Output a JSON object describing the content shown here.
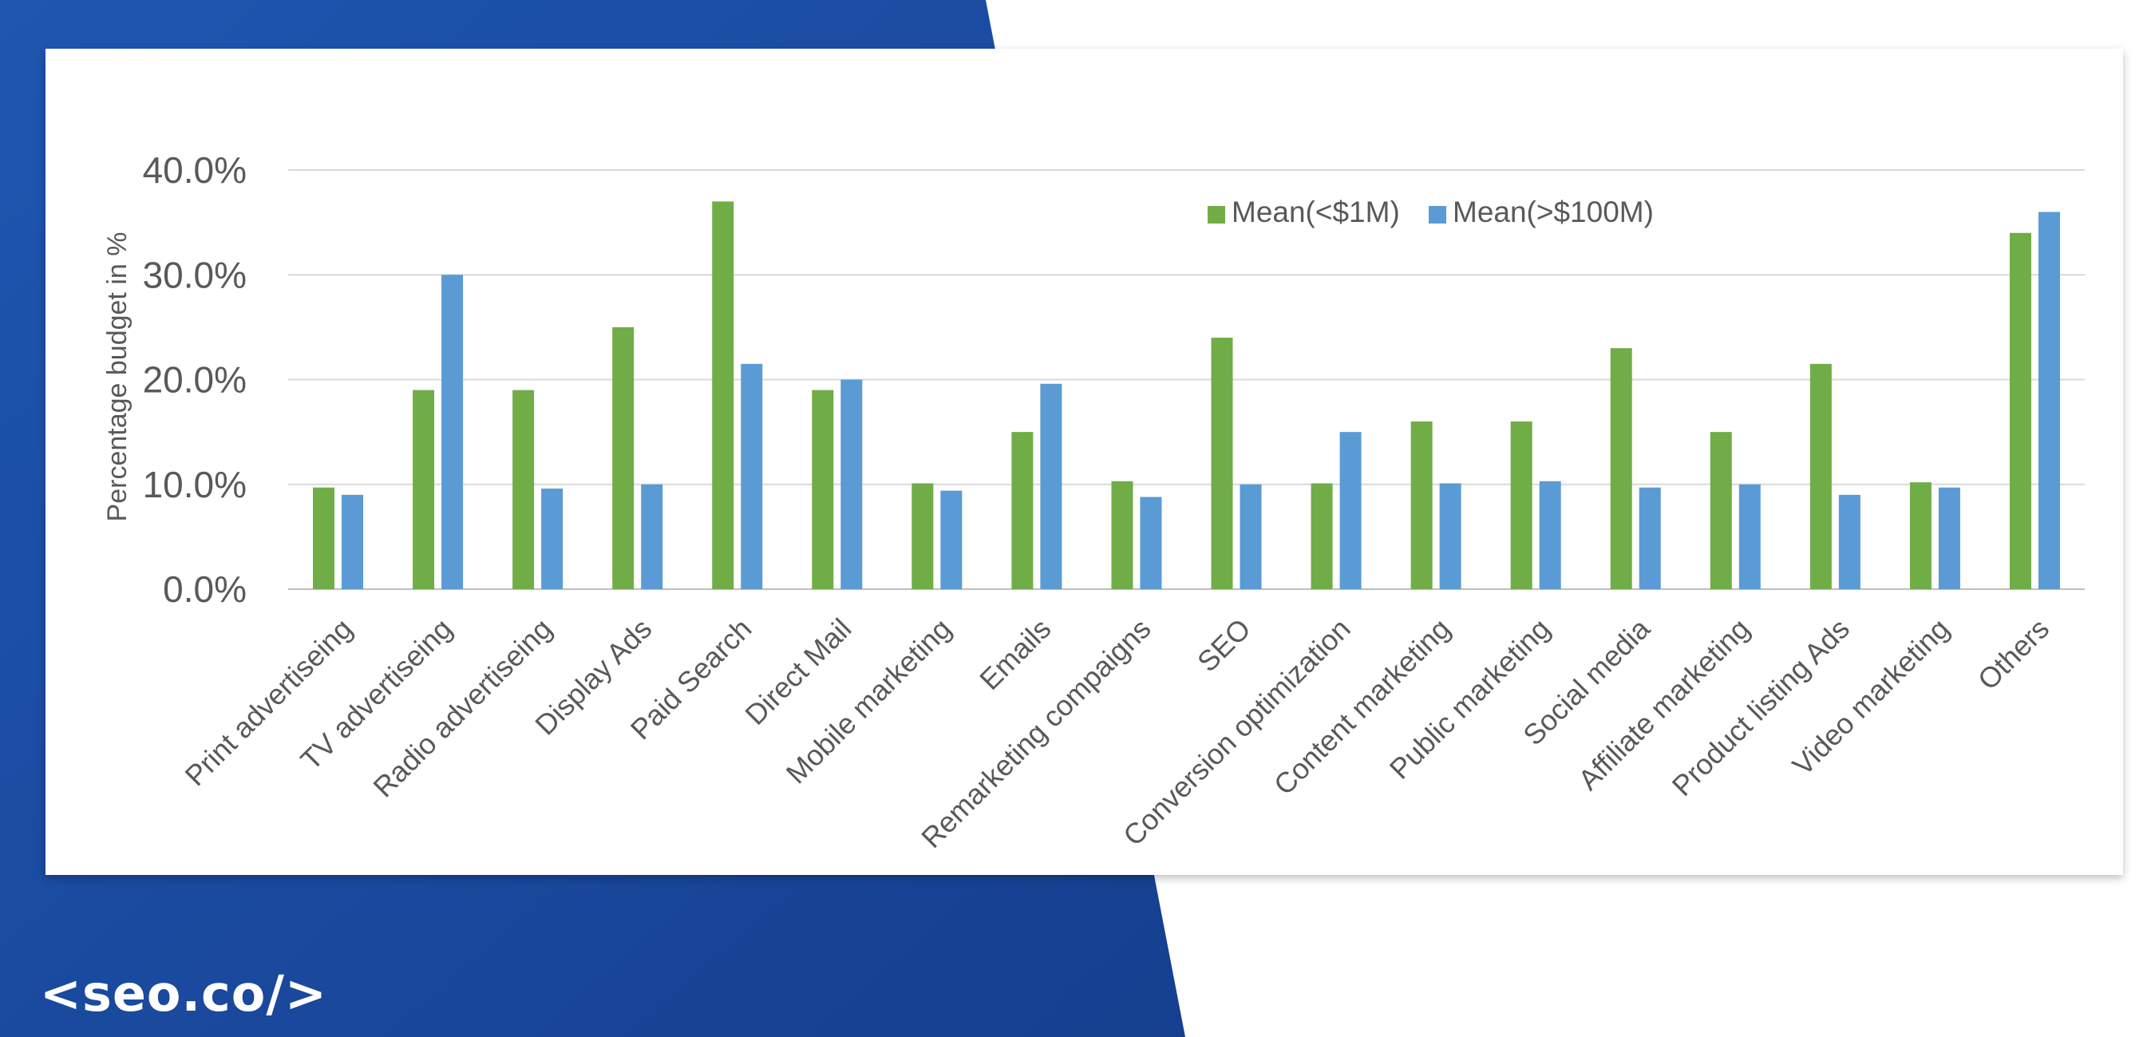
{
  "brand": {
    "logo_text": "<seo.co/>"
  },
  "colors": {
    "background_blue": "#1B4A9E",
    "series_small": "#70AD47",
    "series_large": "#5B9BD5",
    "grid": "#D9D9D9",
    "text": "#595959"
  },
  "chart_data": {
    "type": "bar",
    "title": "",
    "xlabel": "",
    "ylabel": "Percentage budget in %",
    "ylim": [
      0,
      40
    ],
    "yticks": [
      "0.0%",
      "10.0%",
      "20.0%",
      "30.0%",
      "40.0%"
    ],
    "grid": true,
    "legend_position": "top-right",
    "categories": [
      "Print advertiseing",
      "TV advertiseing",
      "Radio advertiseing",
      "Display Ads",
      "Paid Search",
      "Direct Mail",
      "Mobile marketing",
      "Emails",
      "Remarketing compaigns",
      "SEO",
      "Conversion optimization",
      "Content marketing",
      "Public marketing",
      "Social media",
      "Affiliate marketing",
      "Product listing Ads",
      "Video marketing",
      "Others"
    ],
    "series": [
      {
        "name": "Mean(<$1M)",
        "color": "#70AD47",
        "values": [
          9.7,
          19,
          19,
          25,
          37,
          19,
          10.1,
          15,
          10.3,
          24,
          10.1,
          16,
          16,
          23,
          15,
          21.5,
          10.2,
          34
        ]
      },
      {
        "name": "Mean(>$100M)",
        "color": "#5B9BD5",
        "values": [
          9,
          30,
          9.6,
          10,
          21.5,
          20,
          9.4,
          19.6,
          8.8,
          10,
          15,
          10.1,
          10.3,
          9.7,
          10,
          9,
          9.7,
          36
        ]
      }
    ]
  }
}
